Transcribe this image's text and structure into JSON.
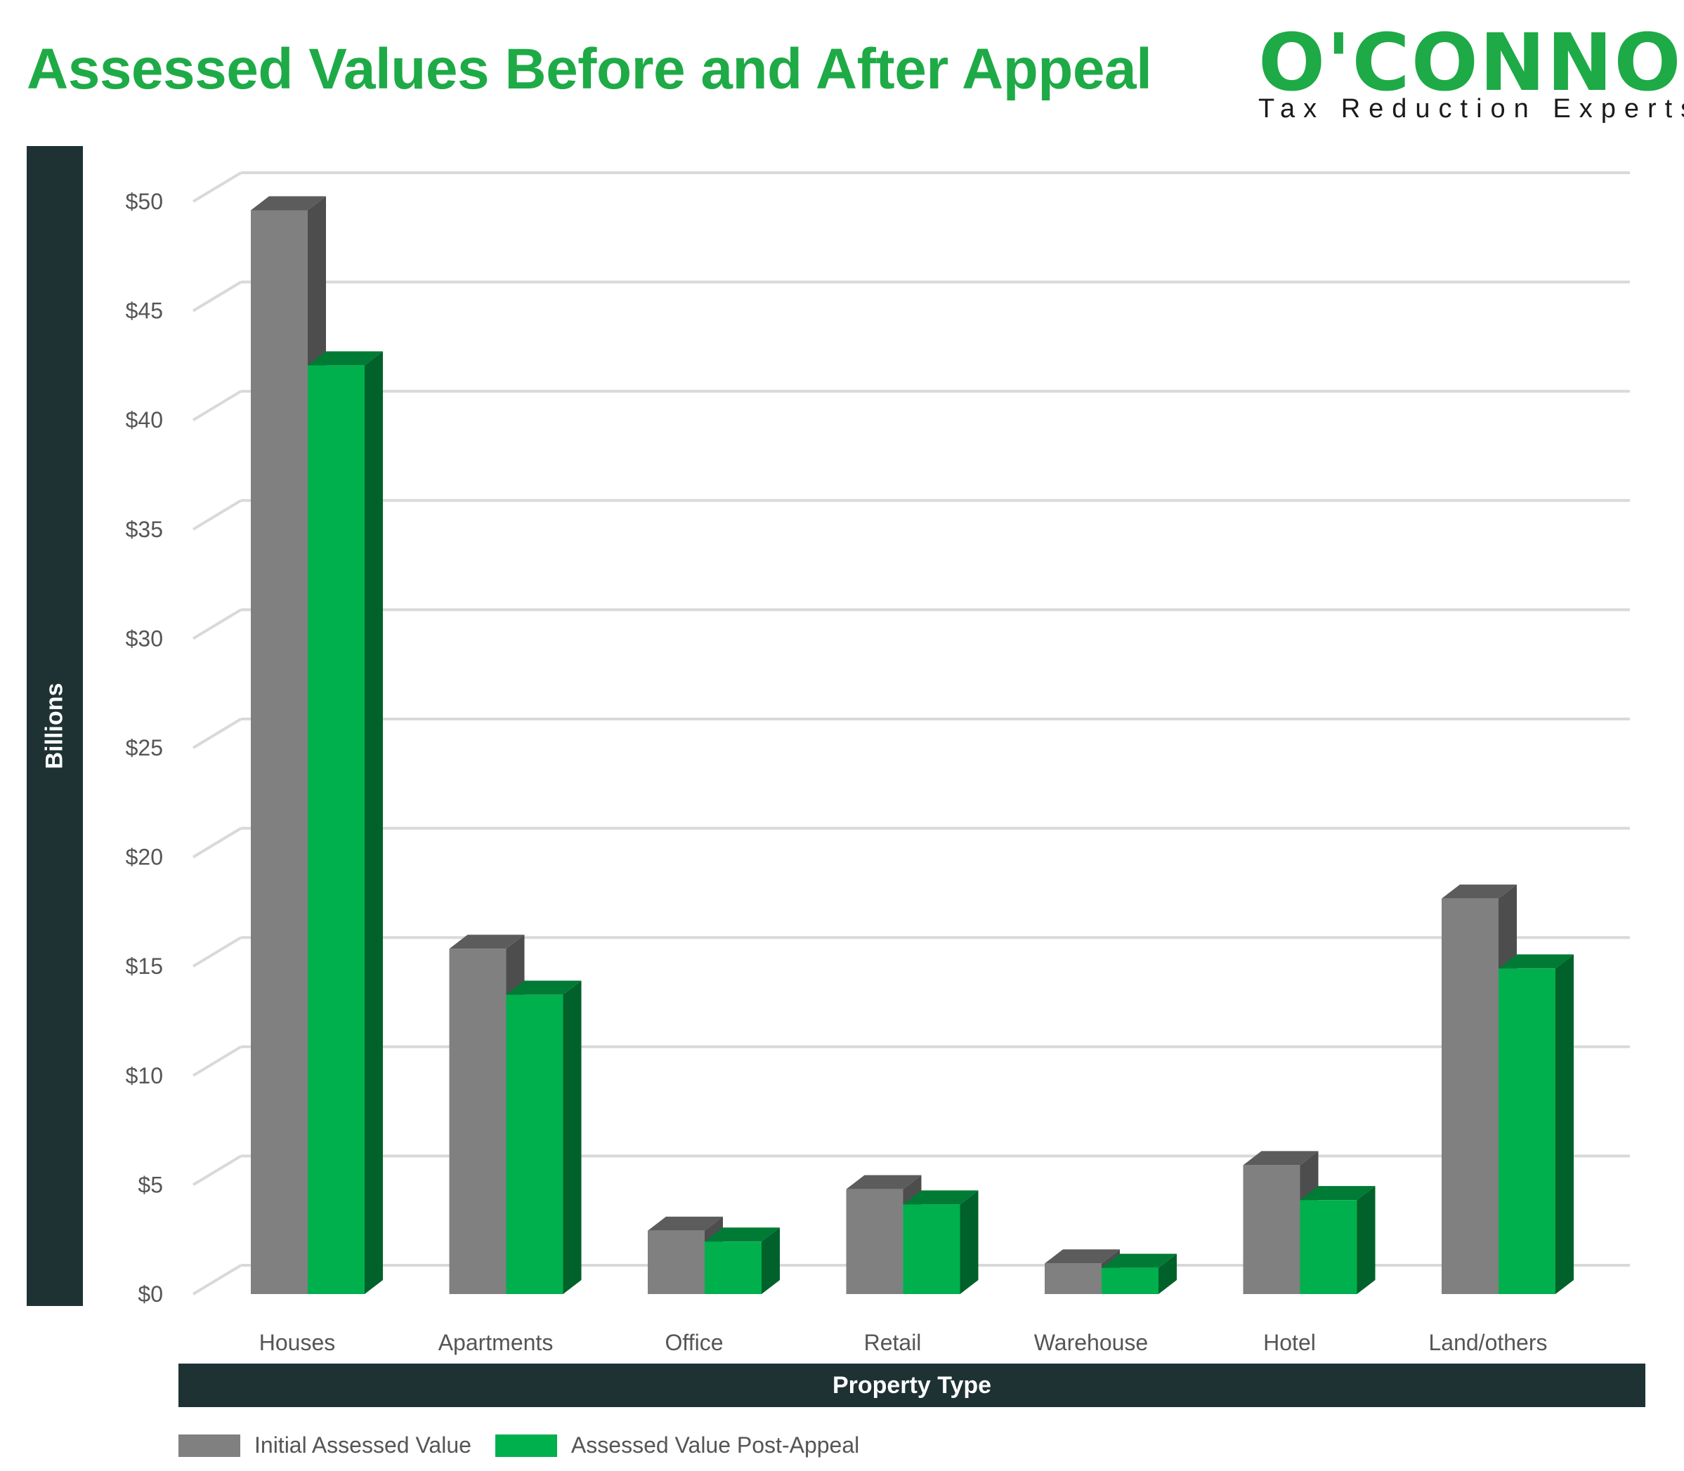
{
  "title": "Assessed Values Before and After Appeal",
  "logo": {
    "wordmark": "O'CONNOR",
    "tagline": "Tax Reduction Experts"
  },
  "colors": {
    "accent": "#1eaa46",
    "panel": "#1e3234",
    "initial": "#808080",
    "post_appeal": "#00b04c"
  },
  "chart_data": {
    "type": "bar",
    "title": "Assessed Values Before and After Appeal",
    "ylabel": "Billions",
    "xlabel": "Property Type",
    "categories": [
      "Houses",
      "Apartments",
      "Office",
      "Retail",
      "Warehouse",
      "Hotel",
      "Land/others"
    ],
    "series": [
      {
        "name": "Initial Assessed Value",
        "values": [
          49.6,
          15.8,
          2.9,
          4.8,
          1.4,
          5.9,
          18.1
        ]
      },
      {
        "name": "Assessed Value Post-Appeal",
        "values": [
          42.5,
          13.7,
          2.4,
          4.1,
          1.2,
          4.3,
          14.9
        ]
      }
    ],
    "ylim": [
      0,
      50
    ],
    "yticks": [
      0,
      5,
      10,
      15,
      20,
      25,
      30,
      35,
      40,
      45,
      50
    ],
    "ytick_labels": [
      "$0",
      "$5",
      "$10",
      "$15",
      "$20",
      "$25",
      "$30",
      "$35",
      "$40",
      "$45",
      "$50"
    ],
    "grid": true,
    "legend_position": "bottom-left",
    "style": "3d-bar"
  }
}
